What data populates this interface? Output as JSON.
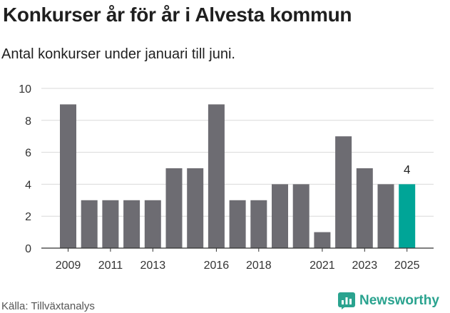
{
  "title": "Konkurser år för år i Alvesta kommun",
  "subtitle": "Antal konkurser under januari till juni.",
  "source": "Källa: Tillväxtanalys",
  "brand": {
    "name": "Newsworthy",
    "icon": "newsworthy-logo-icon",
    "color": "#2aa38f"
  },
  "colors": {
    "bar": "#6d6c72",
    "highlight": "#00a597",
    "grid": "#d9d9d9",
    "axis_text": "#333333"
  },
  "chart_data": {
    "type": "bar",
    "title": "Konkurser år för år i Alvesta kommun",
    "subtitle": "Antal konkurser under januari till juni.",
    "categories": [
      "2009",
      "2010",
      "2011",
      "2012",
      "2013",
      "2014",
      "2015",
      "2016",
      "2017",
      "2018",
      "2019",
      "2020",
      "2021",
      "2022",
      "2023",
      "2024",
      "2025"
    ],
    "x_tick_labels": [
      "2009",
      "2011",
      "2013",
      "2016",
      "2018",
      "2021",
      "2023",
      "2025"
    ],
    "series": [
      {
        "values": [
          9,
          3,
          3,
          3,
          3,
          5,
          5,
          9,
          3,
          3,
          4,
          4,
          1,
          7,
          5,
          4,
          4
        ]
      }
    ],
    "highlight_category": "2025",
    "data_labels": [
      {
        "category": "2025",
        "text": "4"
      }
    ],
    "y_ticks": [
      0,
      2,
      4,
      6,
      8,
      10
    ],
    "ylim": [
      0,
      10
    ],
    "xlabel": "",
    "ylabel": "",
    "grid": true,
    "legend": "none"
  }
}
